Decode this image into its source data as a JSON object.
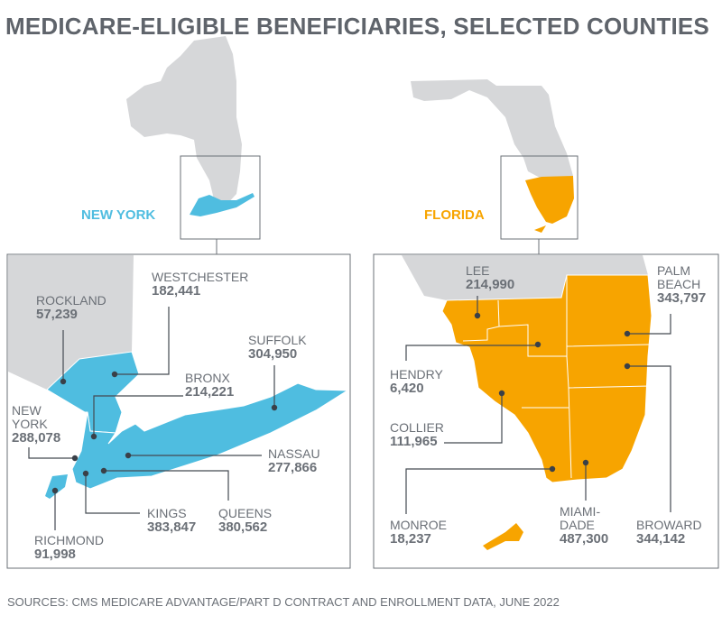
{
  "title": "MEDICARE-ELIGIBLE BENEFICIARIES, SELECTED COUNTIES",
  "colors": {
    "new_york": "#4fbde0",
    "florida": "#f7a400",
    "other_land": "#d6d7d9",
    "text": "#6b7077"
  },
  "new_york": {
    "label": "NEW YORK",
    "counties": [
      {
        "name": "ROCKLAND",
        "value": "57,239"
      },
      {
        "name": "WESTCHESTER",
        "value": "182,441"
      },
      {
        "name": "SUFFOLK",
        "value": "304,950"
      },
      {
        "name": "BRONX",
        "value": "214,221"
      },
      {
        "name": "NEW\nYORK",
        "value": "288,078"
      },
      {
        "name": "NASSAU",
        "value": "277,866"
      },
      {
        "name": "KINGS",
        "value": "383,847"
      },
      {
        "name": "QUEENS",
        "value": "380,562"
      },
      {
        "name": "RICHMOND",
        "value": "91,998"
      }
    ]
  },
  "florida": {
    "label": "FLORIDA",
    "counties": [
      {
        "name": "LEE",
        "value": "214,990"
      },
      {
        "name": "PALM\nBEACH",
        "value": "343,797"
      },
      {
        "name": "HENDRY",
        "value": "6,420"
      },
      {
        "name": "COLLIER",
        "value": "111,965"
      },
      {
        "name": "MONROE",
        "value": "18,237"
      },
      {
        "name": "MIAMI-\nDADE",
        "value": "487,300"
      },
      {
        "name": "BROWARD",
        "value": "344,142"
      }
    ]
  },
  "source": "SOURCES: CMS MEDICARE ADVANTAGE/PART D CONTRACT AND ENROLLMENT DATA, JUNE 2022"
}
